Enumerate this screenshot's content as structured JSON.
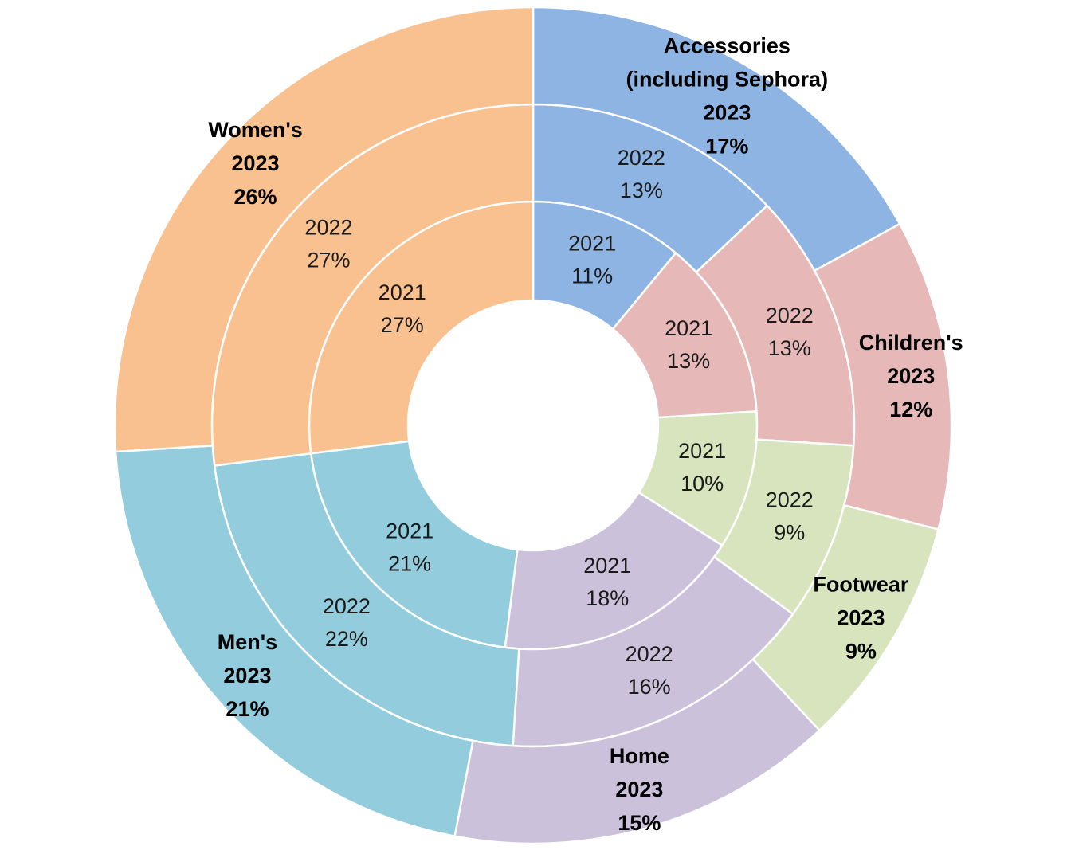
{
  "chart_data": {
    "type": "pie",
    "title": "",
    "rings": [
      {
        "year": "2021",
        "values": [
          11,
          13,
          10,
          18,
          21,
          27
        ]
      },
      {
        "year": "2022",
        "values": [
          13,
          13,
          9,
          16,
          22,
          27
        ]
      },
      {
        "year": "2023",
        "values": [
          17,
          12,
          9,
          15,
          21,
          26
        ]
      }
    ],
    "categories": [
      {
        "name": "Accessories\n(including Sephora)",
        "color": "#8EB4E3"
      },
      {
        "name": "Children's",
        "color": "#E6B9B8"
      },
      {
        "name": "Footwear",
        "color": "#D7E4BD"
      },
      {
        "name": "Home",
        "color": "#CCC1DA"
      },
      {
        "name": "Men's",
        "color": "#93CDDD"
      },
      {
        "name": "Women's",
        "color": "#F9C090"
      }
    ]
  }
}
